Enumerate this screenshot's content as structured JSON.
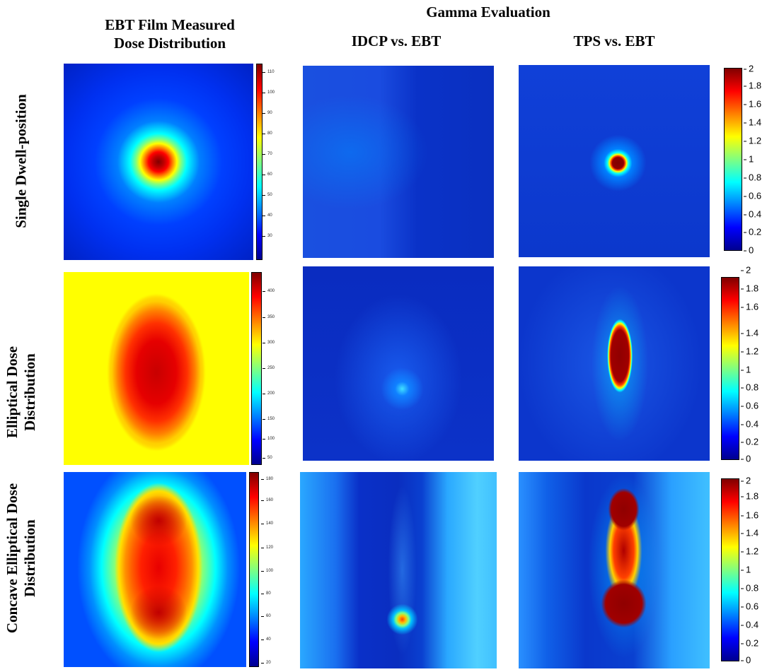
{
  "headers": {
    "film_col_line1": "EBT Film Measured",
    "film_col_line2": "Dose Distribution",
    "gamma_group": "Gamma Evaluation",
    "idcp_col": "IDCP vs. EBT",
    "tps_col": "TPS vs. EBT"
  },
  "rows": [
    {
      "label_lines": [
        "Single Dwell-position"
      ]
    },
    {
      "label_lines": [
        "Elliptical Dose",
        "Distribution"
      ]
    },
    {
      "label_lines": [
        "Concave Elliptical Dose",
        "Distribution"
      ]
    }
  ],
  "colorbars": {
    "gamma_ticks": [
      "2",
      "1.8",
      "1.6",
      "1.4",
      "1.2",
      "1",
      "0.8",
      "0.6",
      "0.4",
      "0.2",
      "0"
    ],
    "film_row1_ticks": [
      "110",
      "100",
      "90",
      "80",
      "70",
      "60",
      "50",
      "40",
      "30"
    ],
    "film_row2_ticks": [
      "400",
      "350",
      "300",
      "250",
      "200",
      "150",
      "100",
      "50"
    ],
    "film_row3_ticks": [
      "180",
      "160",
      "140",
      "120",
      "100",
      "80",
      "60",
      "40",
      "20"
    ]
  },
  "colors": {
    "jet_dark_blue": "#00008f",
    "jet_blue": "#0000ff",
    "jet_cyan": "#00ffff",
    "jet_yellow": "#ffff00",
    "jet_red": "#ff0000",
    "jet_dark_red": "#800000"
  }
}
